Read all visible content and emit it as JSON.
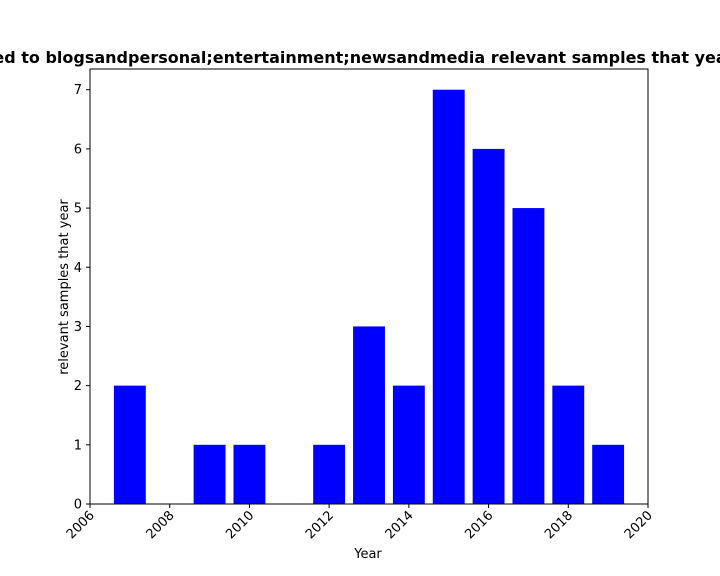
{
  "chart_data": {
    "type": "bar",
    "title": "ed to blogsandpersonal;entertainment;newsandmedia relevant samples that yea",
    "xlabel": "Year",
    "ylabel": "relevant samples that year",
    "x": [
      2007,
      2009,
      2010,
      2012,
      2013,
      2014,
      2015,
      2016,
      2017,
      2018,
      2019
    ],
    "values": [
      2,
      1,
      1,
      1,
      3,
      2,
      7,
      6,
      5,
      2,
      1
    ],
    "xlim": [
      2006,
      2020
    ],
    "ylim": [
      0,
      7.35
    ],
    "xticks": [
      2006,
      2008,
      2010,
      2012,
      2014,
      2016,
      2018,
      2020
    ],
    "yticks": [
      0,
      1,
      2,
      3,
      4,
      5,
      6,
      7
    ],
    "bar_width_years": 0.8,
    "bar_color": "#0000ff",
    "grid": false,
    "legend": "none"
  }
}
